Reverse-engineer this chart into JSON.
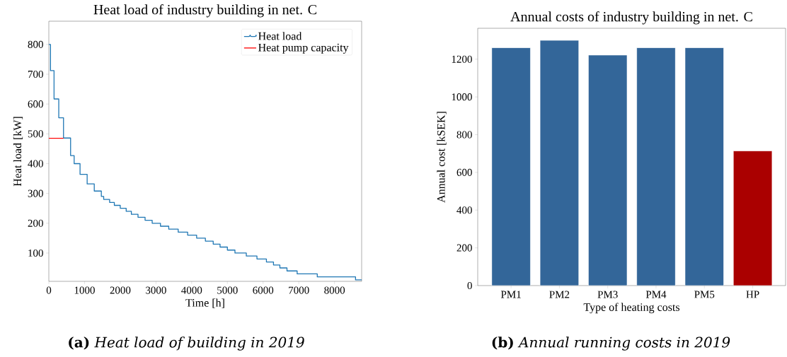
{
  "chart_data": [
    {
      "type": "line",
      "title": "Heat load of industry building in net. C",
      "xlabel": "Time [h]",
      "ylabel": "Heat load [kW]",
      "xlim": [
        0,
        8760
      ],
      "ylim": [
        5,
        878
      ],
      "xticks": [
        0,
        1000,
        2000,
        3000,
        4000,
        5000,
        6000,
        7000,
        8000
      ],
      "yticks": [
        100,
        200,
        300,
        400,
        500,
        600,
        700,
        800
      ],
      "legend": "top right",
      "grid": false,
      "series": [
        {
          "name": "Heat load",
          "type": "step",
          "color": "#1f77b4",
          "x": [
            0,
            46,
            146,
            278,
            411,
            609,
            709,
            874,
            1073,
            1272,
            1470,
            1536,
            1702,
            1834,
            2000,
            2166,
            2311,
            2497,
            2695,
            2894,
            3126,
            3358,
            3623,
            3887,
            4139,
            4384,
            4603,
            4795,
            5000,
            5212,
            5530,
            5828,
            6093,
            6291,
            6470,
            6669,
            6954,
            7517,
            8589,
            8760
          ],
          "values": [
            800,
            712,
            617,
            554,
            486,
            427,
            400,
            364,
            332,
            308,
            290,
            280,
            270,
            260,
            250,
            240,
            230,
            220,
            210,
            200,
            190,
            180,
            170,
            160,
            150,
            140,
            130,
            120,
            110,
            100,
            90,
            80,
            70,
            60,
            50,
            40,
            30,
            20,
            10,
            10
          ]
        },
        {
          "name": "Heat pump capacity",
          "type": "line",
          "color": "#ff0000",
          "x": [
            0,
            411
          ],
          "values": [
            485,
            485
          ]
        }
      ],
      "annotations": [
        "**(a)** *Heat load of building in 2019*"
      ]
    },
    {
      "type": "bar",
      "title": "Annual costs of industry building in net. C",
      "xlabel": "Type of heating costs",
      "ylabel": "Annual cost [kSEK]",
      "categories": [
        "PM1",
        "PM2",
        "PM3",
        "PM4",
        "PM5",
        "HP"
      ],
      "values": [
        1261,
        1300,
        1222,
        1261,
        1261,
        714
      ],
      "colors": [
        "#336699",
        "#336699",
        "#336699",
        "#336699",
        "#336699",
        "#aa0000"
      ],
      "ylim": [
        0,
        1364
      ],
      "yticks": [
        0,
        200,
        400,
        600,
        800,
        1000,
        1200
      ],
      "grid": false,
      "legend": false,
      "annotations": [
        "**(b)** *Annual running costs in 2019*"
      ]
    }
  ]
}
